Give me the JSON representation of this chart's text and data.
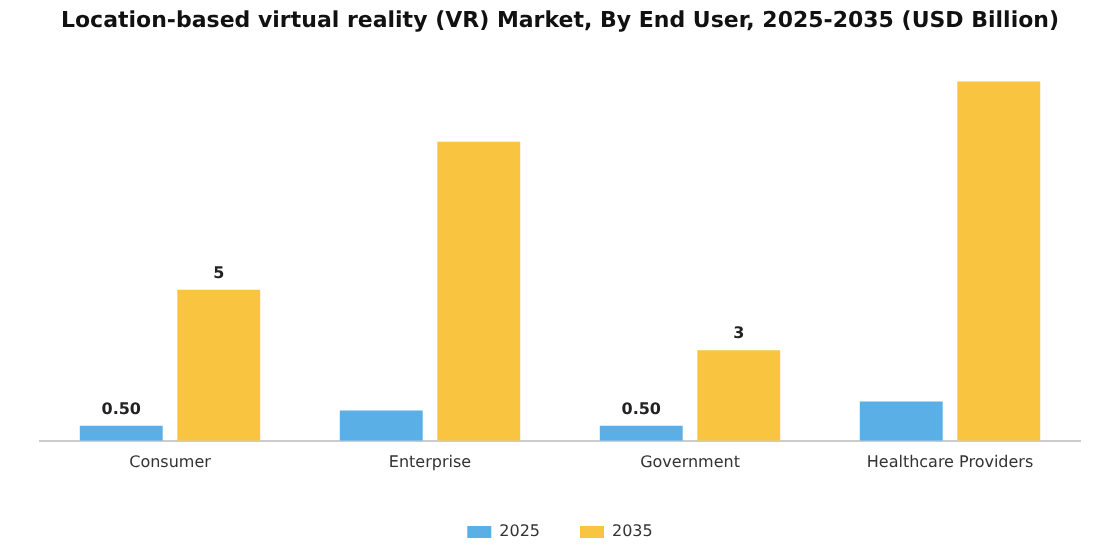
{
  "chart_data": {
    "type": "bar",
    "title": "Location-based virtual reality (VR) Market, By End User, 2025-2035 (USD Billion)",
    "categories": [
      "Consumer",
      "Enterprise",
      "Government",
      "Healthcare Providers"
    ],
    "series": [
      {
        "name": "2025",
        "color": "#5aafe6",
        "values": [
          0.5,
          1.0,
          0.5,
          1.3
        ],
        "value_labels": [
          "0.50",
          null,
          "0.50",
          null
        ]
      },
      {
        "name": "2035",
        "color": "#f9c440",
        "values": [
          5,
          9.9,
          3,
          11.9
        ],
        "value_labels": [
          "5",
          null,
          "3",
          null
        ]
      }
    ],
    "legend": "bottom",
    "grid": false
  }
}
